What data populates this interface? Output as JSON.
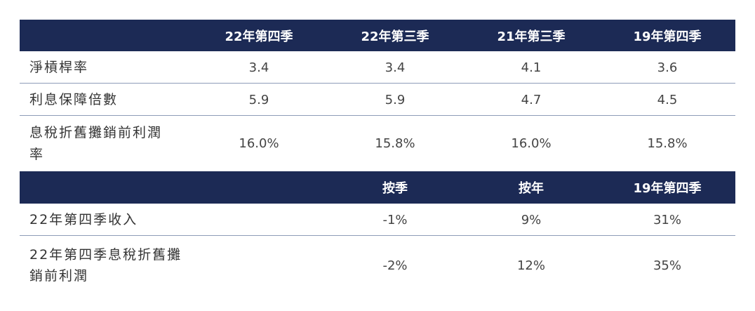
{
  "table1": {
    "header": [
      "22年第四季",
      "22年第三季",
      "21年第三季",
      "19年第四季"
    ],
    "rows": [
      {
        "label": "淨槓桿率",
        "values": [
          "3.4",
          "3.4",
          "4.1",
          "3.6"
        ]
      },
      {
        "label": "利息保障倍數",
        "values": [
          "5.9",
          "5.9",
          "4.7",
          "4.5"
        ]
      },
      {
        "label": "息稅折舊攤銷前利潤率",
        "values": [
          "16.0%",
          "15.8%",
          "16.0%",
          "15.8%"
        ]
      }
    ]
  },
  "table2": {
    "header": [
      "按季",
      "按年",
      "19年第四季"
    ],
    "rows": [
      {
        "label": "22年第四季收入",
        "values": [
          "-1%",
          "9%",
          "31%"
        ]
      },
      {
        "label": "22年第四季息稅折舊攤銷前利潤",
        "values": [
          "-2%",
          "12%",
          "35%"
        ]
      }
    ]
  }
}
